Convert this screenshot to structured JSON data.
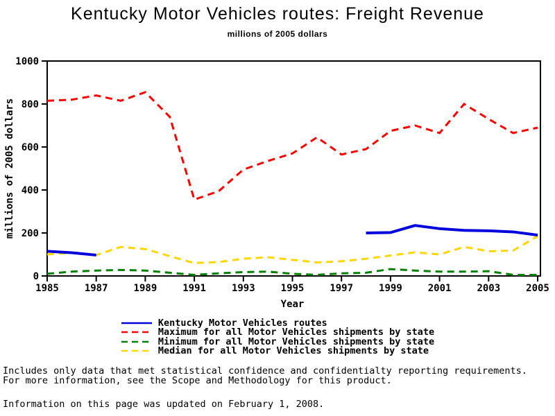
{
  "title": "Kentucky Motor Vehicles routes: Freight Revenue",
  "subtitle": "millions of 2005 dollars",
  "chart_data": {
    "type": "line",
    "title": "Kentucky Motor Vehicles routes: Freight Revenue",
    "subtitle": "millions of 2005 dollars",
    "xlabel": "Year",
    "ylabel": "millions of 2005 dollars",
    "ylim": [
      0,
      1000
    ],
    "yticks": [
      0,
      200,
      400,
      600,
      800,
      1000
    ],
    "xticks": [
      1985,
      1987,
      1989,
      1991,
      1993,
      1995,
      1997,
      1999,
      2001,
      2003,
      2005
    ],
    "grid": false,
    "legend_position": "bottom",
    "x": [
      1985,
      1986,
      1987,
      1988,
      1989,
      1990,
      1991,
      1992,
      1993,
      1994,
      1995,
      1996,
      1997,
      1998,
      1999,
      2000,
      2001,
      2002,
      2003,
      2004,
      2005
    ],
    "series": [
      {
        "id": "kentucky",
        "name": "Kentucky Motor Vehicles routes",
        "color": "#0000dd",
        "dash": "solid",
        "width": 4,
        "values": [
          115,
          108,
          97,
          null,
          null,
          null,
          null,
          null,
          null,
          null,
          null,
          null,
          null,
          200,
          202,
          235,
          220,
          212,
          210,
          205,
          190
        ]
      },
      {
        "id": "maximum",
        "name": "Maximum for all Motor Vehicles shipments by state",
        "color": "#ff0000",
        "dash": "dashed",
        "width": 3,
        "values": [
          815,
          820,
          840,
          815,
          855,
          740,
          355,
          395,
          495,
          535,
          570,
          645,
          565,
          590,
          675,
          700,
          665,
          800,
          730,
          665,
          690
        ]
      },
      {
        "id": "minimum",
        "name": "Minimum for all Motor Vehicles shipments by state",
        "color": "#008000",
        "dash": "dashed",
        "width": 3,
        "values": [
          10,
          20,
          25,
          28,
          25,
          15,
          5,
          12,
          18,
          20,
          10,
          5,
          12,
          15,
          32,
          25,
          20,
          20,
          22,
          5,
          5
        ]
      },
      {
        "id": "median",
        "name": "Median for all Motor Vehicles shipments by state",
        "color": "#ffd700",
        "dash": "dashed",
        "width": 3,
        "values": [
          100,
          108,
          97,
          135,
          125,
          92,
          60,
          65,
          80,
          87,
          75,
          63,
          68,
          80,
          95,
          110,
          100,
          135,
          115,
          118,
          185
        ]
      }
    ]
  },
  "footnotes": {
    "line1": "Includes only data that met statistical confidence and confidentialty reporting requirements.",
    "line2": "For more information, see the Scope and Methodology for this product.",
    "line3": "Information on this page was updated on February 1, 2008."
  }
}
